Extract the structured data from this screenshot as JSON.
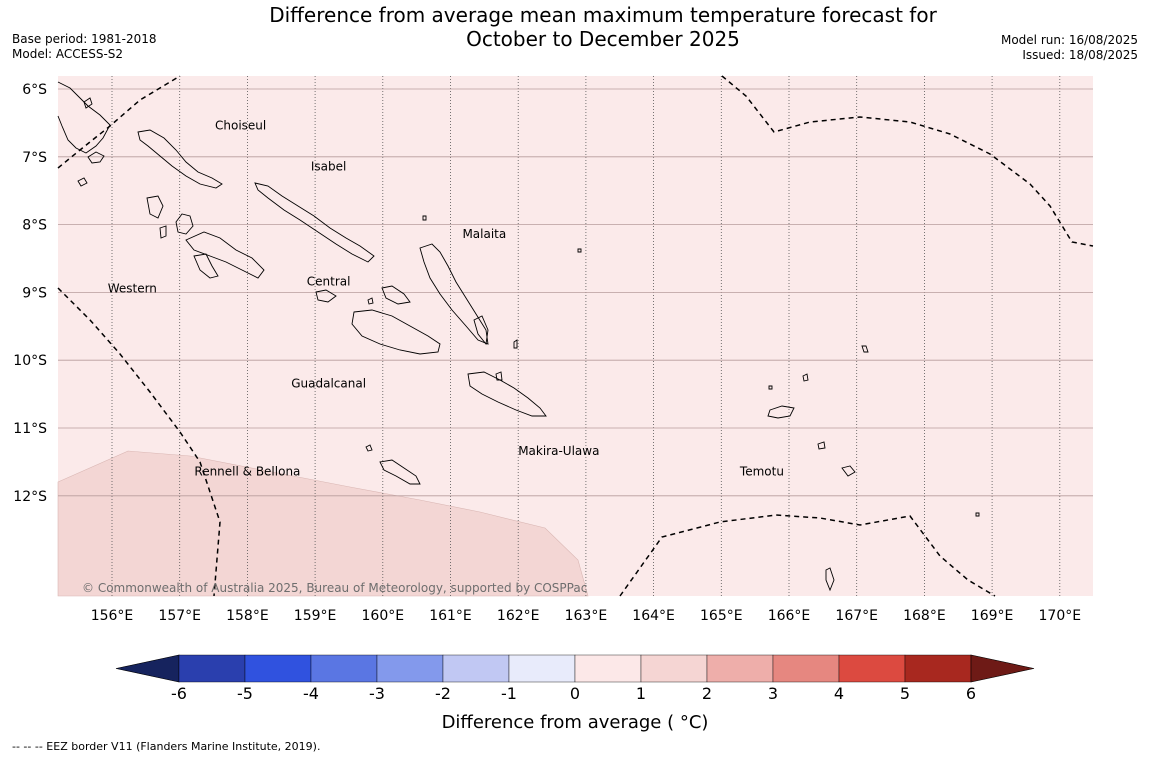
{
  "title": {
    "line1": "Difference from average mean maximum temperature forecast for",
    "line2": "October to December 2025"
  },
  "meta": {
    "base_period": "Base period: 1981-2018",
    "model": "Model: ACCESS-S2",
    "model_run": "Model run: 16/08/2025",
    "issued": "Issued: 18/08/2025"
  },
  "map": {
    "lon_range": [
      155.2,
      170.5
    ],
    "lat_range": [
      -13.5,
      -5.8
    ],
    "lon_ticks": [
      "156°E",
      "157°E",
      "158°E",
      "159°E",
      "160°E",
      "161°E",
      "162°E",
      "163°E",
      "164°E",
      "165°E",
      "166°E",
      "167°E",
      "168°E",
      "169°E",
      "170°E"
    ],
    "lat_ticks": [
      "6°S",
      "7°S",
      "8°S",
      "9°S",
      "10°S",
      "11°S",
      "12°S"
    ],
    "background_color": "#fbeaea",
    "anomaly_2_3_color": "#f3d6d4",
    "province_labels": [
      {
        "name": "Choiseul",
        "lon": 157.9,
        "lat": -6.6
      },
      {
        "name": "Isabel",
        "lon": 159.2,
        "lat": -7.2
      },
      {
        "name": "Malaita",
        "lon": 161.5,
        "lat": -8.2
      },
      {
        "name": "Western",
        "lon": 156.3,
        "lat": -9.0
      },
      {
        "name": "Central",
        "lon": 159.2,
        "lat": -8.9
      },
      {
        "name": "Guadalcanal",
        "lon": 159.2,
        "lat": -10.4
      },
      {
        "name": "Makira-Ulawa",
        "lon": 162.6,
        "lat": -11.4
      },
      {
        "name": "Temotu",
        "lon": 165.6,
        "lat": -11.7
      },
      {
        "name": "Rennell & Bellona",
        "lon": 158.0,
        "lat": -11.7
      }
    ],
    "copyright": "© Commonwealth of Australia 2025, Bureau of Meteorology, supported by COSPPac"
  },
  "colorbar": {
    "label": "Difference from average ( °C)",
    "ticks": [
      "-6",
      "-5",
      "-4",
      "-3",
      "-2",
      "-1",
      "0",
      "1",
      "2",
      "3",
      "4",
      "5",
      "6"
    ],
    "colors": [
      "#16235e",
      "#2a3fae",
      "#3052df",
      "#5a76e3",
      "#8399ec",
      "#c1c8f3",
      "#e8ebfb",
      "#fce8e8",
      "#f5d5d3",
      "#eeaeaa",
      "#e68780",
      "#dc4a40",
      "#a8281f",
      "#6e1a16"
    ]
  },
  "footer": "--  --  -- EEZ border V11 (Flanders Marine Institute, 2019)."
}
